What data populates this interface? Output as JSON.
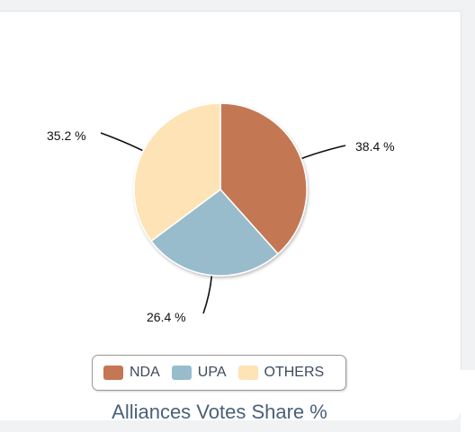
{
  "chart_data": {
    "type": "pie",
    "categories": [
      "NDA",
      "UPA",
      "OTHERS"
    ],
    "values": [
      38.4,
      26.4,
      35.2
    ],
    "value_labels": [
      "38.4 %",
      "26.4 %",
      "35.2 %"
    ],
    "colors": [
      "#c47752",
      "#98bccb",
      "#fee3b6"
    ],
    "title": "Alliances Votes Share %",
    "legend_position": "bottom"
  }
}
